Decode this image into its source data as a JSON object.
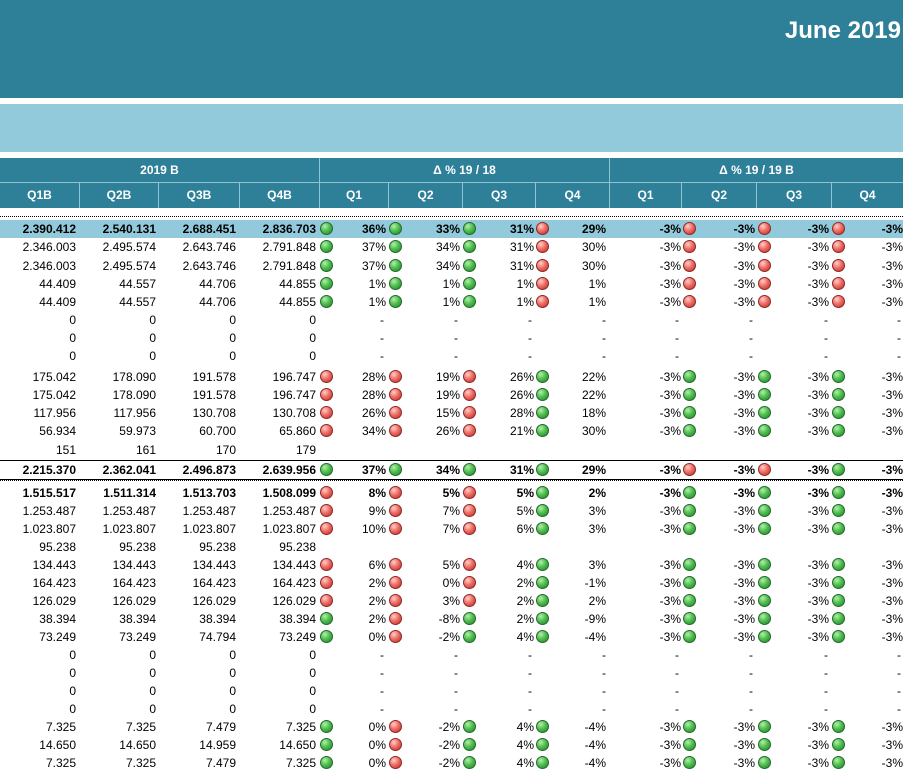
{
  "report": {
    "title": "June 2019"
  },
  "header": {
    "group_2019b": "2019 B",
    "group_delta_1918": "Δ % 19 / 18",
    "group_delta_19b": "Δ % 19 / 19 B",
    "cols_2019b": [
      "Q1B",
      "Q2B",
      "Q3B",
      "Q4B"
    ],
    "cols_delta_1918": [
      "Q1",
      "Q2",
      "Q3",
      "Q4"
    ],
    "cols_delta_19b": [
      "Q1",
      "Q2",
      "Q3",
      "Q4"
    ]
  },
  "indicator_colors": {
    "g": "#3cae46",
    "r": "#e0504a"
  },
  "rows": [
    {
      "b": [
        "2.390.412",
        "2.540.131",
        "2.688.451",
        "2.836.703"
      ],
      "d1": [
        [
          "36%",
          "g"
        ],
        [
          "33%",
          "g"
        ],
        [
          "31%",
          "g"
        ],
        [
          "29%",
          "r"
        ]
      ],
      "d2": [
        [
          "-3%",
          "r"
        ],
        [
          "-3%",
          "r"
        ],
        [
          "-3%",
          "r"
        ],
        [
          "-3%",
          ""
        ]
      ],
      "bold": true,
      "hl": true
    },
    {
      "b": [
        "2.346.003",
        "2.495.574",
        "2.643.746",
        "2.791.848"
      ],
      "d1": [
        [
          "37%",
          "g"
        ],
        [
          "34%",
          "g"
        ],
        [
          "31%",
          "g"
        ],
        [
          "30%",
          "r"
        ]
      ],
      "d2": [
        [
          "-3%",
          "r"
        ],
        [
          "-3%",
          "r"
        ],
        [
          "-3%",
          "r"
        ],
        [
          "-3%",
          ""
        ]
      ]
    },
    {
      "b": [
        "2.346.003",
        "2.495.574",
        "2.643.746",
        "2.791.848"
      ],
      "d1": [
        [
          "37%",
          "g"
        ],
        [
          "34%",
          "g"
        ],
        [
          "31%",
          "g"
        ],
        [
          "30%",
          "r"
        ]
      ],
      "d2": [
        [
          "-3%",
          "r"
        ],
        [
          "-3%",
          "r"
        ],
        [
          "-3%",
          "r"
        ],
        [
          "-3%",
          ""
        ]
      ]
    },
    {
      "b": [
        "44.409",
        "44.557",
        "44.706",
        "44.855"
      ],
      "d1": [
        [
          "1%",
          "g"
        ],
        [
          "1%",
          "g"
        ],
        [
          "1%",
          "g"
        ],
        [
          "1%",
          "r"
        ]
      ],
      "d2": [
        [
          "-3%",
          "r"
        ],
        [
          "-3%",
          "r"
        ],
        [
          "-3%",
          "r"
        ],
        [
          "-3%",
          ""
        ]
      ]
    },
    {
      "b": [
        "44.409",
        "44.557",
        "44.706",
        "44.855"
      ],
      "d1": [
        [
          "1%",
          "g"
        ],
        [
          "1%",
          "g"
        ],
        [
          "1%",
          "g"
        ],
        [
          "1%",
          "r"
        ]
      ],
      "d2": [
        [
          "-3%",
          "r"
        ],
        [
          "-3%",
          "r"
        ],
        [
          "-3%",
          "r"
        ],
        [
          "-3%",
          ""
        ]
      ]
    },
    {
      "b": [
        "0",
        "0",
        "0",
        "0"
      ],
      "d1": [
        [
          "-",
          ""
        ],
        [
          "-",
          ""
        ],
        [
          "-",
          ""
        ],
        [
          "-",
          ""
        ]
      ],
      "d2": [
        [
          "-",
          ""
        ],
        [
          "-",
          ""
        ],
        [
          "-",
          ""
        ],
        [
          "-",
          ""
        ]
      ]
    },
    {
      "b": [
        "0",
        "0",
        "0",
        "0"
      ],
      "d1": [
        [
          "-",
          ""
        ],
        [
          "-",
          ""
        ],
        [
          "-",
          ""
        ],
        [
          "-",
          ""
        ]
      ],
      "d2": [
        [
          "-",
          ""
        ],
        [
          "-",
          ""
        ],
        [
          "-",
          ""
        ],
        [
          "-",
          ""
        ]
      ]
    },
    {
      "b": [
        "0",
        "0",
        "0",
        "0"
      ],
      "d1": [
        [
          "-",
          ""
        ],
        [
          "-",
          ""
        ],
        [
          "-",
          ""
        ],
        [
          "-",
          ""
        ]
      ],
      "d2": [
        [
          "-",
          ""
        ],
        [
          "-",
          ""
        ],
        [
          "-",
          ""
        ],
        [
          "-",
          ""
        ]
      ]
    },
    {
      "b": [
        "175.042",
        "178.090",
        "191.578",
        "196.747"
      ],
      "d1": [
        [
          "28%",
          "r"
        ],
        [
          "19%",
          "r"
        ],
        [
          "26%",
          "r"
        ],
        [
          "22%",
          "g"
        ]
      ],
      "d2": [
        [
          "-3%",
          "g"
        ],
        [
          "-3%",
          "g"
        ],
        [
          "-3%",
          "g"
        ],
        [
          "-3%",
          ""
        ]
      ]
    },
    {
      "b": [
        "175.042",
        "178.090",
        "191.578",
        "196.747"
      ],
      "d1": [
        [
          "28%",
          "r"
        ],
        [
          "19%",
          "r"
        ],
        [
          "26%",
          "r"
        ],
        [
          "22%",
          "g"
        ]
      ],
      "d2": [
        [
          "-3%",
          "g"
        ],
        [
          "-3%",
          "g"
        ],
        [
          "-3%",
          "g"
        ],
        [
          "-3%",
          ""
        ]
      ]
    },
    {
      "b": [
        "117.956",
        "117.956",
        "130.708",
        "130.708"
      ],
      "d1": [
        [
          "26%",
          "r"
        ],
        [
          "15%",
          "r"
        ],
        [
          "28%",
          "r"
        ],
        [
          "18%",
          "g"
        ]
      ],
      "d2": [
        [
          "-3%",
          "g"
        ],
        [
          "-3%",
          "g"
        ],
        [
          "-3%",
          "g"
        ],
        [
          "-3%",
          ""
        ]
      ]
    },
    {
      "b": [
        "56.934",
        "59.973",
        "60.700",
        "65.860"
      ],
      "d1": [
        [
          "34%",
          "r"
        ],
        [
          "26%",
          "r"
        ],
        [
          "21%",
          "r"
        ],
        [
          "30%",
          "g"
        ]
      ],
      "d2": [
        [
          "-3%",
          "g"
        ],
        [
          "-3%",
          "g"
        ],
        [
          "-3%",
          "g"
        ],
        [
          "-3%",
          ""
        ]
      ]
    },
    {
      "b": [
        "151",
        "161",
        "170",
        "179"
      ],
      "d1": [
        [
          "",
          ""
        ],
        [
          "",
          ""
        ],
        [
          "",
          ""
        ],
        [
          "",
          ""
        ]
      ],
      "d2": [
        [
          "",
          ""
        ],
        [
          "",
          ""
        ],
        [
          "",
          ""
        ],
        [
          "",
          ""
        ]
      ]
    },
    {
      "b": [
        "2.215.370",
        "2.362.041",
        "2.496.873",
        "2.639.956"
      ],
      "d1": [
        [
          "37%",
          "g"
        ],
        [
          "34%",
          "g"
        ],
        [
          "31%",
          "g"
        ],
        [
          "29%",
          "g"
        ]
      ],
      "d2": [
        [
          "-3%",
          "r"
        ],
        [
          "-3%",
          "r"
        ],
        [
          "-3%",
          "g"
        ],
        [
          "-3%",
          ""
        ]
      ],
      "bold": true
    },
    {
      "b": [
        "1.515.517",
        "1.511.314",
        "1.513.703",
        "1.508.099"
      ],
      "d1": [
        [
          "8%",
          "r"
        ],
        [
          "5%",
          "r"
        ],
        [
          "5%",
          "r"
        ],
        [
          "2%",
          "g"
        ]
      ],
      "d2": [
        [
          "-3%",
          "g"
        ],
        [
          "-3%",
          "g"
        ],
        [
          "-3%",
          "g"
        ],
        [
          "-3%",
          ""
        ]
      ],
      "bold": true
    },
    {
      "b": [
        "1.253.487",
        "1.253.487",
        "1.253.487",
        "1.253.487"
      ],
      "d1": [
        [
          "9%",
          "r"
        ],
        [
          "7%",
          "r"
        ],
        [
          "5%",
          "r"
        ],
        [
          "3%",
          "g"
        ]
      ],
      "d2": [
        [
          "-3%",
          "g"
        ],
        [
          "-3%",
          "g"
        ],
        [
          "-3%",
          "g"
        ],
        [
          "-3%",
          ""
        ]
      ]
    },
    {
      "b": [
        "1.023.807",
        "1.023.807",
        "1.023.807",
        "1.023.807"
      ],
      "d1": [
        [
          "10%",
          "r"
        ],
        [
          "7%",
          "r"
        ],
        [
          "6%",
          "r"
        ],
        [
          "3%",
          "g"
        ]
      ],
      "d2": [
        [
          "-3%",
          "g"
        ],
        [
          "-3%",
          "g"
        ],
        [
          "-3%",
          "g"
        ],
        [
          "-3%",
          ""
        ]
      ]
    },
    {
      "b": [
        "95.238",
        "95.238",
        "95.238",
        "95.238"
      ],
      "d1": [
        [
          "",
          ""
        ],
        [
          "",
          ""
        ],
        [
          "",
          ""
        ],
        [
          "",
          ""
        ]
      ],
      "d2": [
        [
          "",
          ""
        ],
        [
          "",
          ""
        ],
        [
          "",
          ""
        ],
        [
          "",
          ""
        ]
      ]
    },
    {
      "b": [
        "134.443",
        "134.443",
        "134.443",
        "134.443"
      ],
      "d1": [
        [
          "6%",
          "r"
        ],
        [
          "5%",
          "r"
        ],
        [
          "4%",
          "r"
        ],
        [
          "3%",
          "g"
        ]
      ],
      "d2": [
        [
          "-3%",
          "g"
        ],
        [
          "-3%",
          "g"
        ],
        [
          "-3%",
          "g"
        ],
        [
          "-3%",
          ""
        ]
      ]
    },
    {
      "b": [
        "164.423",
        "164.423",
        "164.423",
        "164.423"
      ],
      "d1": [
        [
          "2%",
          "r"
        ],
        [
          "0%",
          "r"
        ],
        [
          "2%",
          "r"
        ],
        [
          "-1%",
          "g"
        ]
      ],
      "d2": [
        [
          "-3%",
          "g"
        ],
        [
          "-3%",
          "g"
        ],
        [
          "-3%",
          "g"
        ],
        [
          "-3%",
          ""
        ]
      ]
    },
    {
      "b": [
        "126.029",
        "126.029",
        "126.029",
        "126.029"
      ],
      "d1": [
        [
          "2%",
          "r"
        ],
        [
          "3%",
          "r"
        ],
        [
          "2%",
          "r"
        ],
        [
          "2%",
          "g"
        ]
      ],
      "d2": [
        [
          "-3%",
          "g"
        ],
        [
          "-3%",
          "g"
        ],
        [
          "-3%",
          "g"
        ],
        [
          "-3%",
          ""
        ]
      ]
    },
    {
      "b": [
        "38.394",
        "38.394",
        "38.394",
        "38.394"
      ],
      "d1": [
        [
          "2%",
          "g"
        ],
        [
          "-8%",
          "r"
        ],
        [
          "2%",
          "g"
        ],
        [
          "-9%",
          "g"
        ]
      ],
      "d2": [
        [
          "-3%",
          "g"
        ],
        [
          "-3%",
          "g"
        ],
        [
          "-3%",
          "g"
        ],
        [
          "-3%",
          ""
        ]
      ]
    },
    {
      "b": [
        "73.249",
        "73.249",
        "74.794",
        "73.249"
      ],
      "d1": [
        [
          "0%",
          "g"
        ],
        [
          "-2%",
          "r"
        ],
        [
          "4%",
          "g"
        ],
        [
          "-4%",
          "g"
        ]
      ],
      "d2": [
        [
          "-3%",
          "g"
        ],
        [
          "-3%",
          "g"
        ],
        [
          "-3%",
          "g"
        ],
        [
          "-3%",
          ""
        ]
      ]
    },
    {
      "b": [
        "0",
        "0",
        "0",
        "0"
      ],
      "d1": [
        [
          "-",
          ""
        ],
        [
          "-",
          ""
        ],
        [
          "-",
          ""
        ],
        [
          "-",
          ""
        ]
      ],
      "d2": [
        [
          "-",
          ""
        ],
        [
          "-",
          ""
        ],
        [
          "-",
          ""
        ],
        [
          "-",
          ""
        ]
      ]
    },
    {
      "b": [
        "0",
        "0",
        "0",
        "0"
      ],
      "d1": [
        [
          "-",
          ""
        ],
        [
          "-",
          ""
        ],
        [
          "-",
          ""
        ],
        [
          "-",
          ""
        ]
      ],
      "d2": [
        [
          "-",
          ""
        ],
        [
          "-",
          ""
        ],
        [
          "-",
          ""
        ],
        [
          "-",
          ""
        ]
      ]
    },
    {
      "b": [
        "0",
        "0",
        "0",
        "0"
      ],
      "d1": [
        [
          "-",
          ""
        ],
        [
          "-",
          ""
        ],
        [
          "-",
          ""
        ],
        [
          "-",
          ""
        ]
      ],
      "d2": [
        [
          "-",
          ""
        ],
        [
          "-",
          ""
        ],
        [
          "-",
          ""
        ],
        [
          "-",
          ""
        ]
      ]
    },
    {
      "b": [
        "0",
        "0",
        "0",
        "0"
      ],
      "d1": [
        [
          "-",
          ""
        ],
        [
          "-",
          ""
        ],
        [
          "-",
          ""
        ],
        [
          "-",
          ""
        ]
      ],
      "d2": [
        [
          "-",
          ""
        ],
        [
          "-",
          ""
        ],
        [
          "-",
          ""
        ],
        [
          "-",
          ""
        ]
      ]
    },
    {
      "b": [
        "7.325",
        "7.325",
        "7.479",
        "7.325"
      ],
      "d1": [
        [
          "0%",
          "g"
        ],
        [
          "-2%",
          "r"
        ],
        [
          "4%",
          "g"
        ],
        [
          "-4%",
          "g"
        ]
      ],
      "d2": [
        [
          "-3%",
          "g"
        ],
        [
          "-3%",
          "g"
        ],
        [
          "-3%",
          "g"
        ],
        [
          "-3%",
          ""
        ]
      ]
    },
    {
      "b": [
        "14.650",
        "14.650",
        "14.959",
        "14.650"
      ],
      "d1": [
        [
          "0%",
          "g"
        ],
        [
          "-2%",
          "r"
        ],
        [
          "4%",
          "g"
        ],
        [
          "-4%",
          "g"
        ]
      ],
      "d2": [
        [
          "-3%",
          "g"
        ],
        [
          "-3%",
          "g"
        ],
        [
          "-3%",
          "g"
        ],
        [
          "-3%",
          ""
        ]
      ]
    },
    {
      "b": [
        "7.325",
        "7.325",
        "7.479",
        "7.325"
      ],
      "d1": [
        [
          "0%",
          "g"
        ],
        [
          "-2%",
          "r"
        ],
        [
          "4%",
          "g"
        ],
        [
          "-4%",
          "g"
        ]
      ],
      "d2": [
        [
          "-3%",
          "g"
        ],
        [
          "-3%",
          "g"
        ],
        [
          "-3%",
          "g"
        ],
        [
          "-3%",
          ""
        ]
      ]
    }
  ]
}
